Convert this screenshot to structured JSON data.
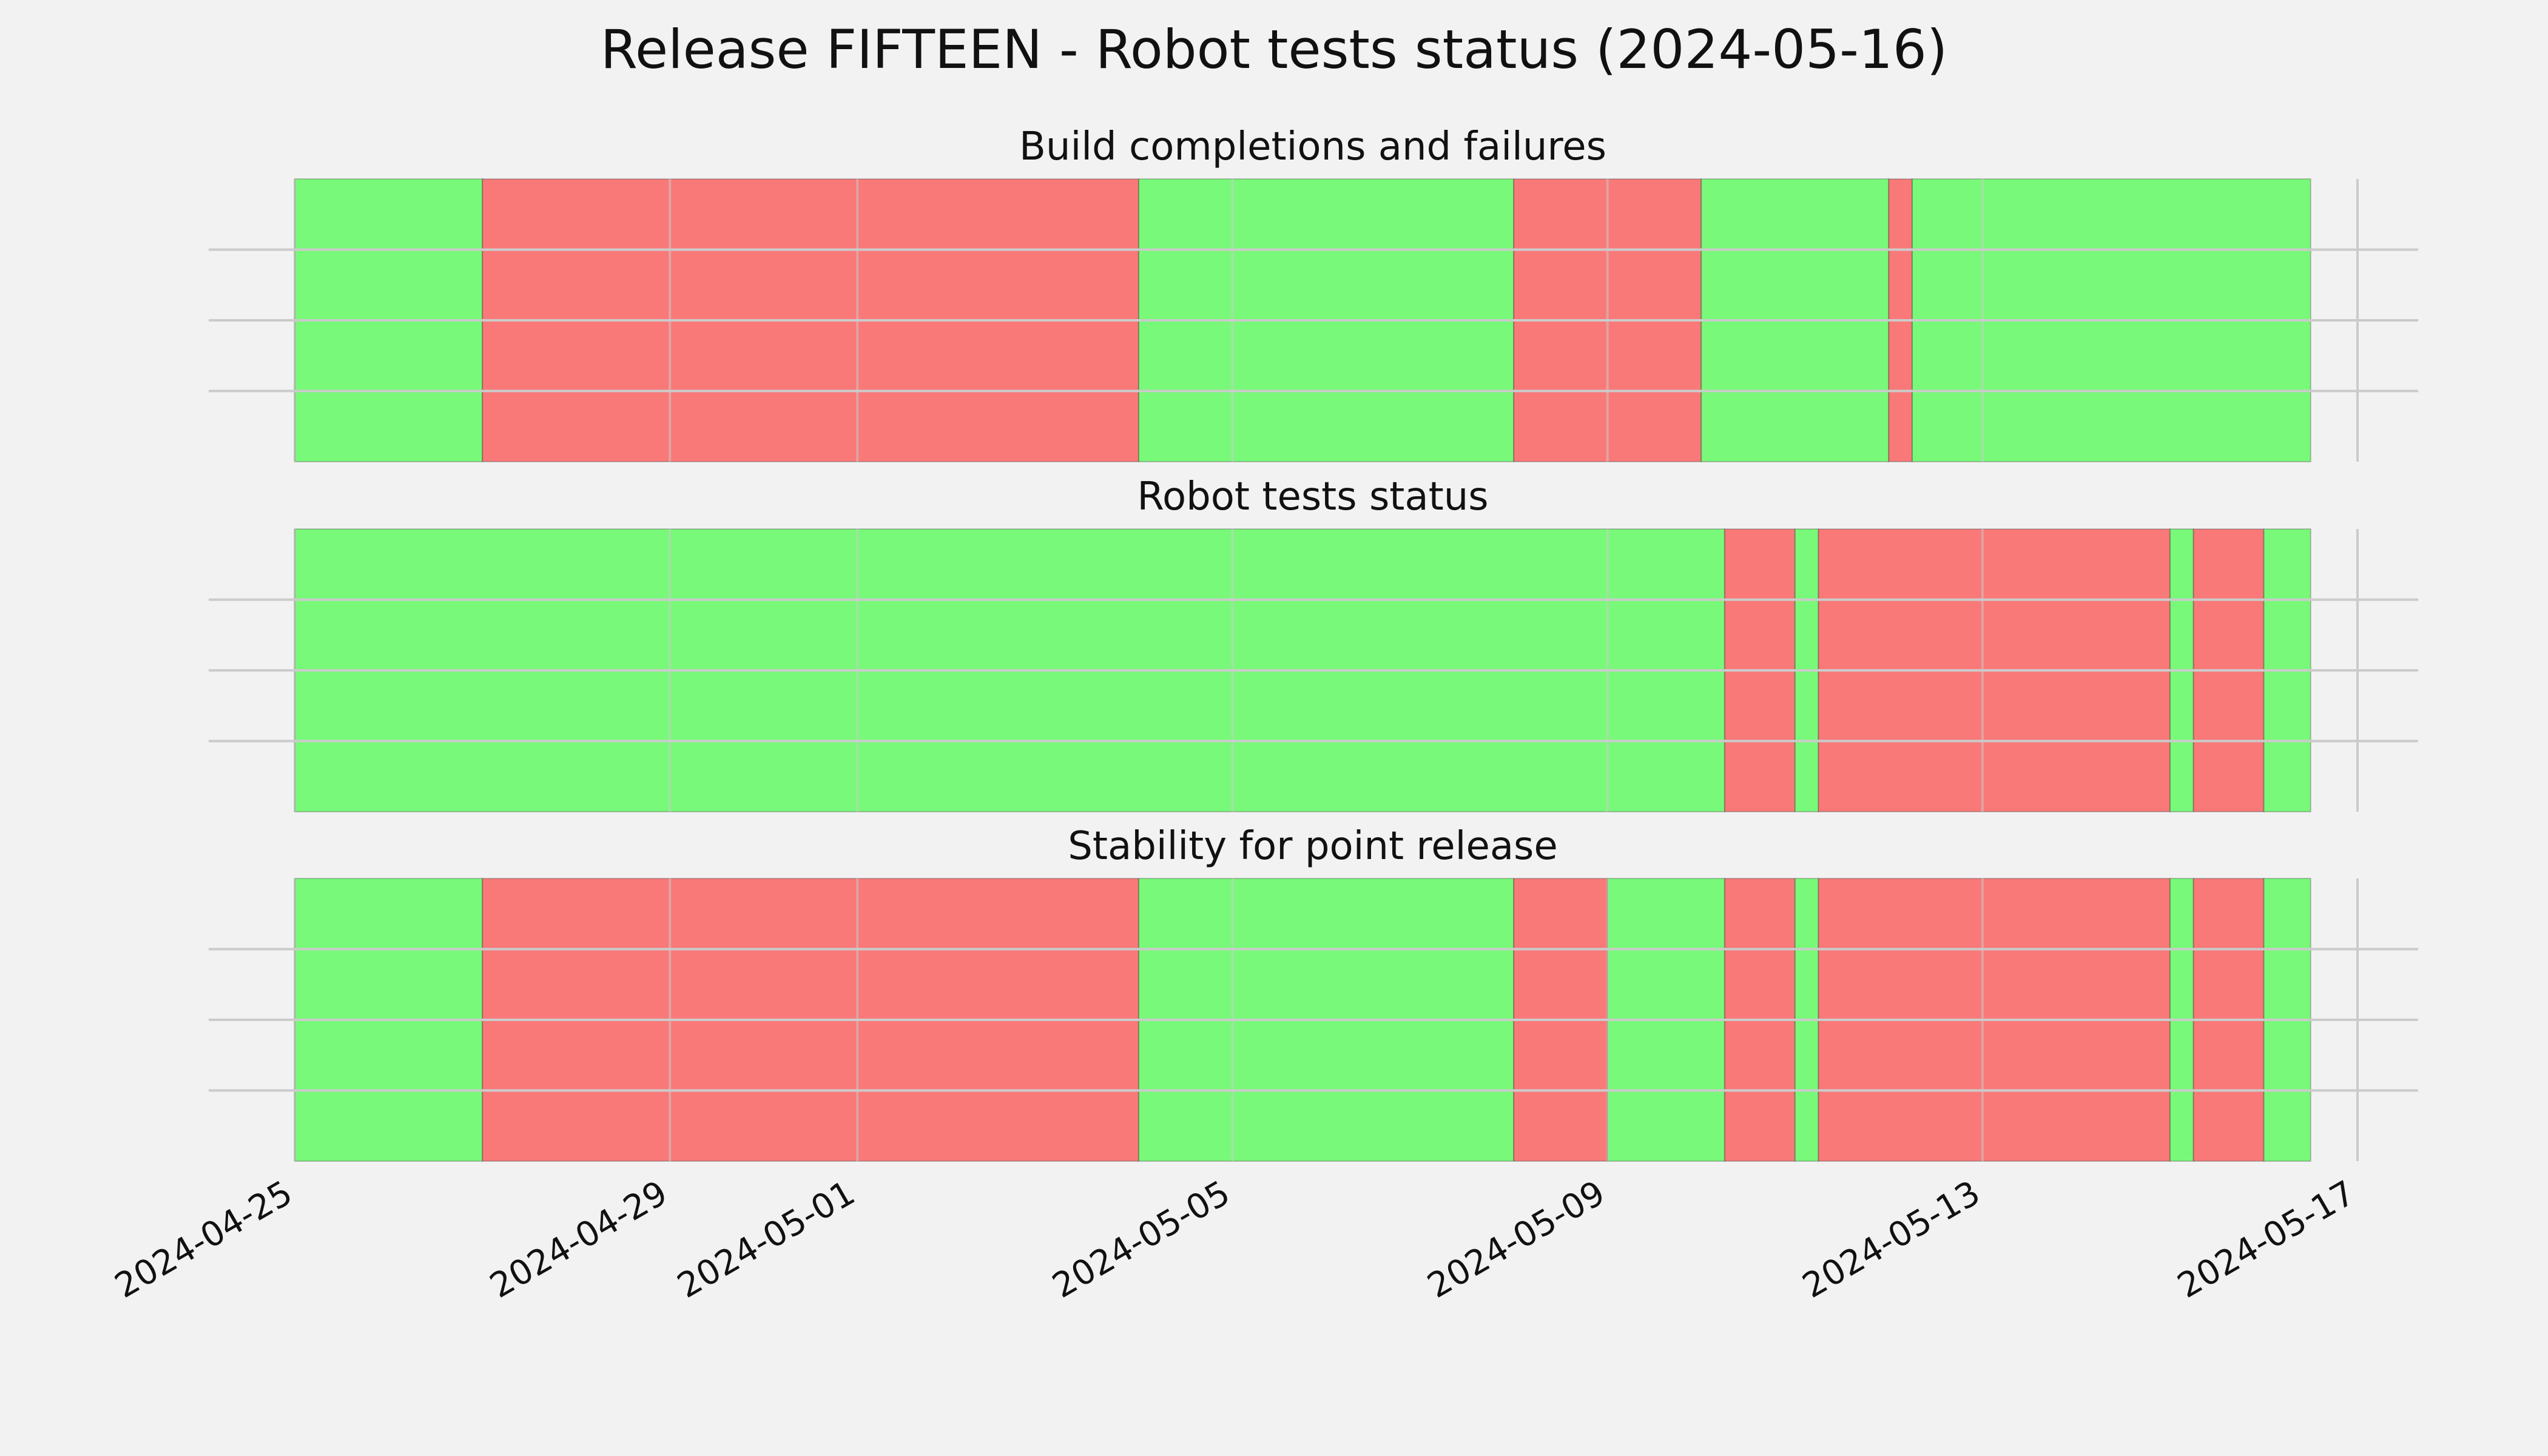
{
  "title": "Release FIFTEEN - Robot tests status (2024-05-16)",
  "colors": {
    "pass": "#00ff00",
    "fail": "#ff0000",
    "band_alpha": 0.5
  },
  "chart_data": {
    "type": "timeline",
    "x_axis": {
      "type": "date",
      "range": [
        "2024-04-25",
        "2024-05-17"
      ],
      "ticks": [
        "2024-04-25",
        "2024-04-29",
        "2024-05-01",
        "2024-05-05",
        "2024-05-09",
        "2024-05-13",
        "2024-05-17"
      ],
      "tick_labels": [
        "2024-04-25",
        "2024-04-29",
        "2024-05-01",
        "2024-05-05",
        "2024-05-09",
        "2024-05-13",
        "2024-05-17"
      ]
    },
    "grid": true,
    "panels": [
      {
        "title": "Build completions and failures",
        "segments": [
          {
            "start": "2024-04-25 00:00",
            "end": "2024-04-27 00:00",
            "status": "pass"
          },
          {
            "start": "2024-04-27 00:00",
            "end": "2024-05-04 00:00",
            "status": "fail"
          },
          {
            "start": "2024-05-04 00:00",
            "end": "2024-05-08 00:00",
            "status": "pass"
          },
          {
            "start": "2024-05-08 00:00",
            "end": "2024-05-10 00:00",
            "status": "fail"
          },
          {
            "start": "2024-05-10 00:00",
            "end": "2024-05-12 00:00",
            "status": "pass"
          },
          {
            "start": "2024-05-12 00:00",
            "end": "2024-05-12 06:00",
            "status": "fail"
          },
          {
            "start": "2024-05-12 06:00",
            "end": "2024-05-16 12:00",
            "status": "pass"
          }
        ]
      },
      {
        "title": "Robot tests status",
        "segments": [
          {
            "start": "2024-04-25 00:00",
            "end": "2024-05-10 06:00",
            "status": "pass"
          },
          {
            "start": "2024-05-10 06:00",
            "end": "2024-05-11 00:00",
            "status": "fail"
          },
          {
            "start": "2024-05-11 00:00",
            "end": "2024-05-11 06:00",
            "status": "pass"
          },
          {
            "start": "2024-05-11 06:00",
            "end": "2024-05-15 00:00",
            "status": "fail"
          },
          {
            "start": "2024-05-15 00:00",
            "end": "2024-05-15 06:00",
            "status": "pass"
          },
          {
            "start": "2024-05-15 06:00",
            "end": "2024-05-16 00:00",
            "status": "fail"
          },
          {
            "start": "2024-05-16 00:00",
            "end": "2024-05-16 12:00",
            "status": "pass"
          }
        ]
      },
      {
        "title": "Stability for point release",
        "segments": [
          {
            "start": "2024-04-25 00:00",
            "end": "2024-04-27 00:00",
            "status": "pass"
          },
          {
            "start": "2024-04-27 00:00",
            "end": "2024-05-04 00:00",
            "status": "fail"
          },
          {
            "start": "2024-05-04 00:00",
            "end": "2024-05-08 00:00",
            "status": "pass"
          },
          {
            "start": "2024-05-08 00:00",
            "end": "2024-05-09 00:00",
            "status": "fail"
          },
          {
            "start": "2024-05-09 00:00",
            "end": "2024-05-10 06:00",
            "status": "pass"
          },
          {
            "start": "2024-05-10 06:00",
            "end": "2024-05-11 00:00",
            "status": "fail"
          },
          {
            "start": "2024-05-11 00:00",
            "end": "2024-05-11 06:00",
            "status": "pass"
          },
          {
            "start": "2024-05-11 06:00",
            "end": "2024-05-15 00:00",
            "status": "fail"
          },
          {
            "start": "2024-05-15 00:00",
            "end": "2024-05-15 06:00",
            "status": "pass"
          },
          {
            "start": "2024-05-15 06:00",
            "end": "2024-05-16 00:00",
            "status": "fail"
          },
          {
            "start": "2024-05-16 00:00",
            "end": "2024-05-16 12:00",
            "status": "pass"
          }
        ]
      }
    ]
  }
}
